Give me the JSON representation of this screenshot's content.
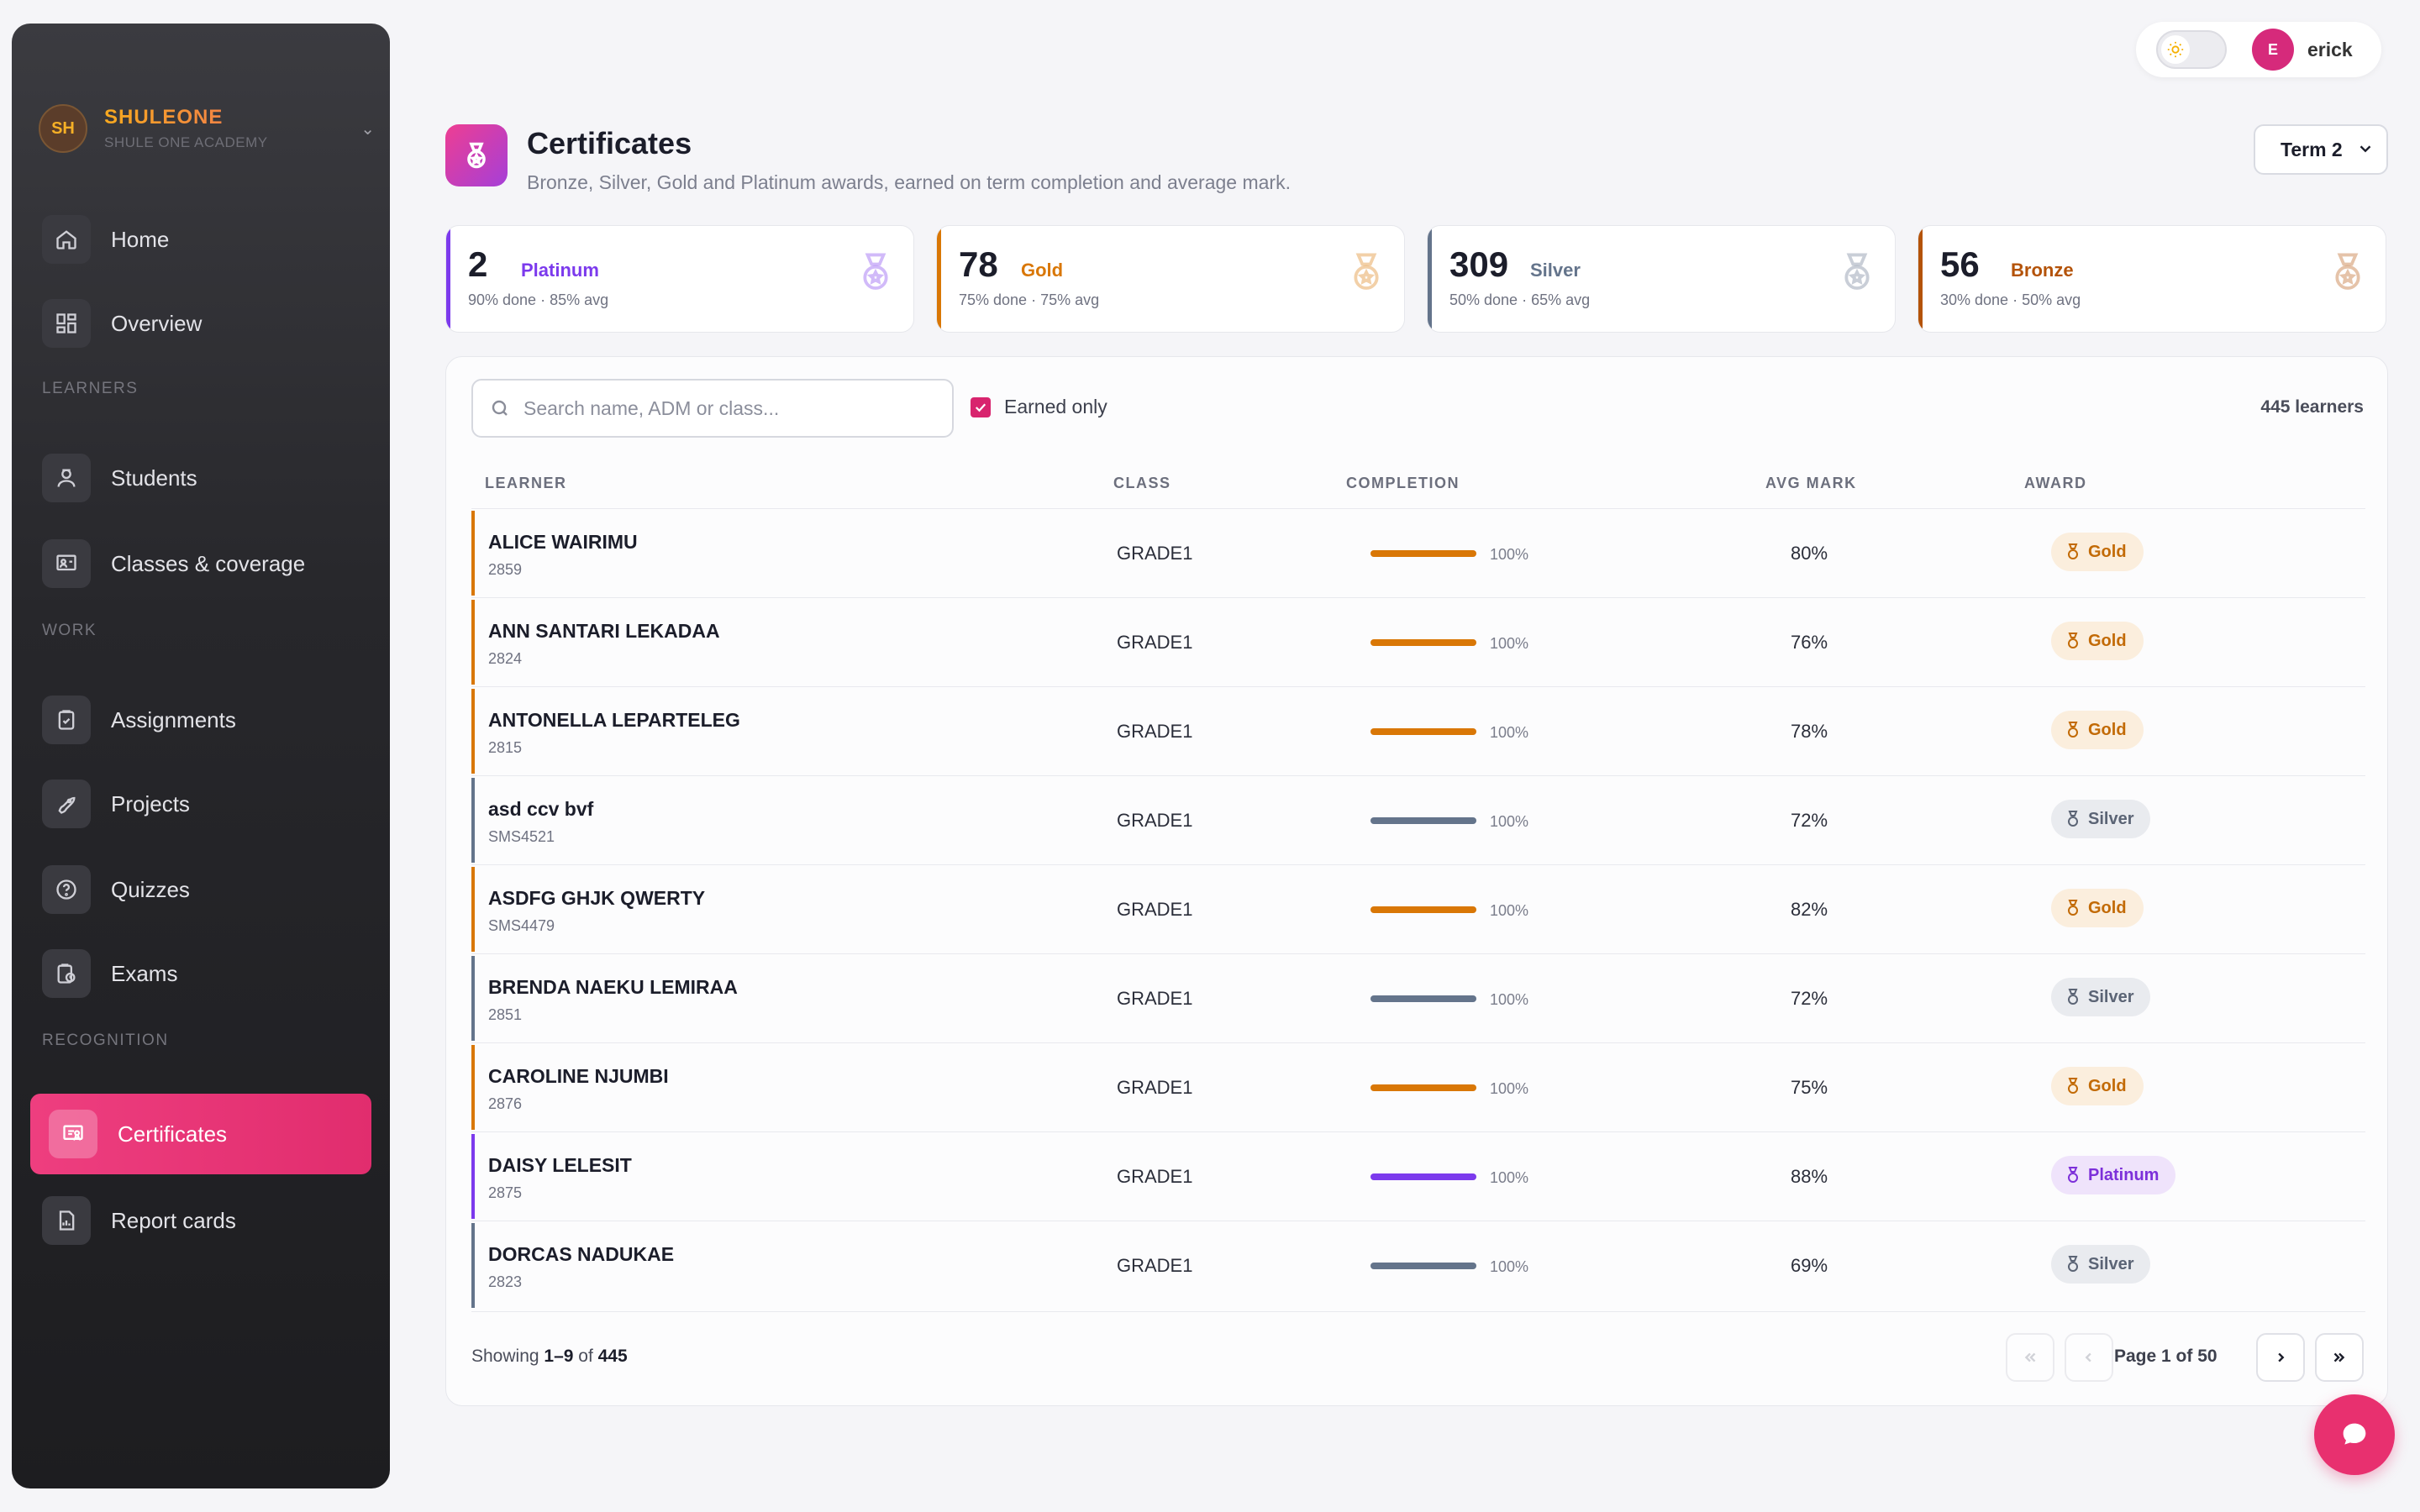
{
  "brand": {
    "initials": "SH",
    "name": "SHULEONE",
    "subtitle": "SHULE ONE ACADEMY"
  },
  "nav": {
    "home": "Home",
    "overview": "Overview",
    "section_learners": "LEARNERS",
    "students": "Students",
    "classes": "Classes & coverage",
    "section_work": "WORK",
    "assignments": "Assignments",
    "projects": "Projects",
    "quizzes": "Quizzes",
    "exams": "Exams",
    "section_recognition": "RECOGNITION",
    "certificates": "Certificates",
    "report_cards": "Report cards"
  },
  "user": {
    "initial": "E",
    "name": "erick"
  },
  "header": {
    "title": "Certificates",
    "subtitle": "Bronze, Silver, Gold and Platinum awards, earned on term completion and average mark.",
    "term": "Term 2"
  },
  "stats": [
    {
      "count": "2",
      "name": "Platinum",
      "meta": "90% done · 85% avg",
      "color": "#7c3aed"
    },
    {
      "count": "78",
      "name": "Gold",
      "meta": "75% done · 75% avg",
      "color": "#d97706"
    },
    {
      "count": "309",
      "name": "Silver",
      "meta": "50% done · 65% avg",
      "color": "#64748b"
    },
    {
      "count": "56",
      "name": "Bronze",
      "meta": "30% done · 50% avg",
      "color": "#b45309"
    }
  ],
  "toolbar": {
    "search_placeholder": "Search name, ADM or class...",
    "earned_only": "Earned only",
    "learner_count": "445 learners"
  },
  "table": {
    "headers": {
      "learner": "LEARNER",
      "class": "CLASS",
      "completion": "COMPLETION",
      "avg": "AVG MARK",
      "award": "AWARD"
    },
    "rows": [
      {
        "name": "ALICE WAIRIMU",
        "adm": "2859",
        "class": "GRADE1",
        "completion": "100%",
        "completion_value": 1.0,
        "avg": "80%",
        "award": "Gold"
      },
      {
        "name": "ANN SANTARI LEKADAA",
        "adm": "2824",
        "class": "GRADE1",
        "completion": "100%",
        "completion_value": 1.0,
        "avg": "76%",
        "award": "Gold"
      },
      {
        "name": "ANTONELLA LEPARTELEG",
        "adm": "2815",
        "class": "GRADE1",
        "completion": "100%",
        "completion_value": 1.0,
        "avg": "78%",
        "award": "Gold"
      },
      {
        "name": "asd ccv bvf",
        "adm": "SMS4521",
        "class": "GRADE1",
        "completion": "100%",
        "completion_value": 1.0,
        "avg": "72%",
        "award": "Silver"
      },
      {
        "name": "ASDFG GHJK QWERTY",
        "adm": "SMS4479",
        "class": "GRADE1",
        "completion": "100%",
        "completion_value": 1.0,
        "avg": "82%",
        "award": "Gold"
      },
      {
        "name": "BRENDA NAEKU LEMIRAA",
        "adm": "2851",
        "class": "GRADE1",
        "completion": "100%",
        "completion_value": 1.0,
        "avg": "72%",
        "award": "Silver"
      },
      {
        "name": "CAROLINE NJUMBI",
        "adm": "2876",
        "class": "GRADE1",
        "completion": "100%",
        "completion_value": 1.0,
        "avg": "75%",
        "award": "Gold"
      },
      {
        "name": "DAISY LELESIT",
        "adm": "2875",
        "class": "GRADE1",
        "completion": "100%",
        "completion_value": 1.0,
        "avg": "88%",
        "award": "Platinum"
      },
      {
        "name": "DORCAS NADUKAE",
        "adm": "2823",
        "class": "GRADE1",
        "completion": "100%",
        "completion_value": 1.0,
        "avg": "69%",
        "award": "Silver"
      }
    ]
  },
  "award_colors": {
    "Gold": {
      "accent": "#d97706",
      "badge_bg": "#fbeedd",
      "badge_fg": "#c26a06"
    },
    "Silver": {
      "accent": "#64748b",
      "badge_bg": "#e9ebef",
      "badge_fg": "#5b6475"
    },
    "Platinum": {
      "accent": "#7c3aed",
      "badge_bg": "#efe3fb",
      "badge_fg": "#7c2fd9"
    }
  },
  "pagination": {
    "showing_prefix": "Showing ",
    "showing_range": "1–9",
    "showing_of": " of ",
    "showing_total": "445",
    "page_label": "Page 1 of 50"
  }
}
